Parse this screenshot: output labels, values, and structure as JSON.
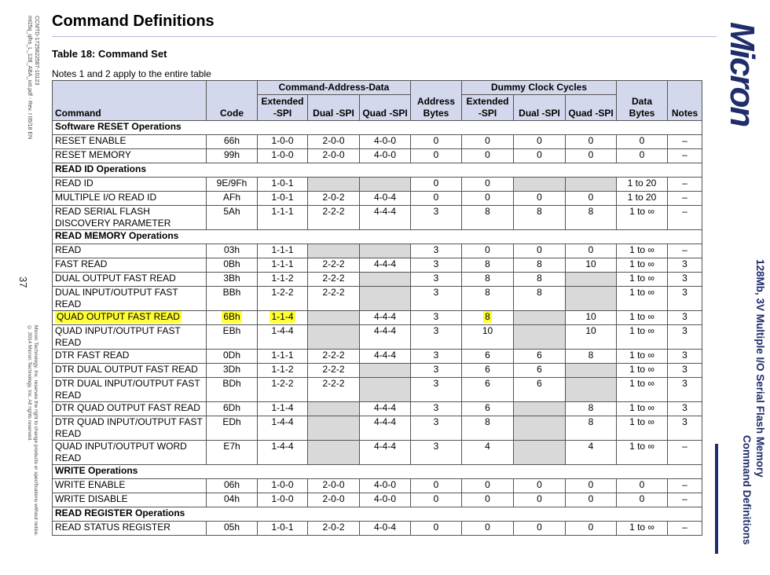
{
  "margin_left": {
    "doc_id": "CCMTD-1725822587-10123\nmt25q_qlhs_L_128_ABA_xxt.pdf - Rev. I 05/18 EN",
    "page_number": "37",
    "legal": "Micron Technology, Inc. reserves the right to change products or specifications without notice.\n© 2014 Micron Technology, Inc. All rights reserved."
  },
  "header": {
    "title": "Command Definitions",
    "logo_text": "Micron"
  },
  "side_title": {
    "line1": "128Mb, 3V Multiple I/O Serial Flash Memory",
    "line2": "Command Definitions"
  },
  "table": {
    "title": "Table 18: Command Set",
    "note": "Notes 1 and 2 apply to the entire table",
    "headers": {
      "command": "Command",
      "code": "Code",
      "cad_group": "Command-Address-Data",
      "cad_ext": "Extended -SPI",
      "cad_dual": "Dual -SPI",
      "cad_quad": "Quad -SPI",
      "address_bytes": "Address Bytes",
      "dummy_group": "Dummy Clock Cycles",
      "dummy_ext": "Extended -SPI",
      "dummy_dual": "Dual -SPI",
      "dummy_quad": "Quad -SPI",
      "data_bytes": "Data Bytes",
      "notes": "Notes"
    },
    "rows": [
      {
        "section": "Software RESET Operations"
      },
      {
        "cmd": "RESET ENABLE",
        "code": "66h",
        "ext": "1-0-0",
        "dual": "2-0-0",
        "quad": "4-0-0",
        "addr": "0",
        "dext": "0",
        "ddual": "0",
        "dquad": "0",
        "data": "0",
        "notes": "–"
      },
      {
        "cmd": "RESET MEMORY",
        "code": "99h",
        "ext": "1-0-0",
        "dual": "2-0-0",
        "quad": "4-0-0",
        "addr": "0",
        "dext": "0",
        "ddual": "0",
        "dquad": "0",
        "data": "0",
        "notes": "–"
      },
      {
        "section": "READ ID Operations"
      },
      {
        "cmd": "READ ID",
        "code": "9E/9Fh",
        "ext": "1-0-1",
        "dual": "",
        "quad": "",
        "addr": "0",
        "dext": "0",
        "ddual": "",
        "dquad": "",
        "data": "1 to 20",
        "notes": "–",
        "gray": [
          "dual",
          "quad",
          "ddual",
          "dquad"
        ]
      },
      {
        "cmd": "MULTIPLE I/O READ ID",
        "code": "AFh",
        "ext": "1-0-1",
        "dual": "2-0-2",
        "quad": "4-0-4",
        "addr": "0",
        "dext": "0",
        "ddual": "0",
        "dquad": "0",
        "data": "1 to 20",
        "notes": "–"
      },
      {
        "cmd": "READ SERIAL FLASH DISCOVERY PARAMETER",
        "code": "5Ah",
        "ext": "1-1-1",
        "dual": "2-2-2",
        "quad": "4-4-4",
        "addr": "3",
        "dext": "8",
        "ddual": "8",
        "dquad": "8",
        "data": "1 to ∞",
        "notes": "–",
        "tall": true
      },
      {
        "section": "READ MEMORY Operations"
      },
      {
        "cmd": "READ",
        "code": "03h",
        "ext": "1-1-1",
        "dual": "",
        "quad": "",
        "addr": "3",
        "dext": "0",
        "ddual": "0",
        "dquad": "0",
        "data": "1 to ∞",
        "notes": "–",
        "gray": [
          "dual",
          "quad"
        ]
      },
      {
        "cmd": "FAST READ",
        "code": "0Bh",
        "ext": "1-1-1",
        "dual": "2-2-2",
        "quad": "4-4-4",
        "addr": "3",
        "dext": "8",
        "ddual": "8",
        "dquad": "10",
        "data": "1 to ∞",
        "notes": "3"
      },
      {
        "cmd": "DUAL OUTPUT FAST READ",
        "code": "3Bh",
        "ext": "1-1-2",
        "dual": "2-2-2",
        "quad": "",
        "addr": "3",
        "dext": "8",
        "ddual": "8",
        "dquad": "",
        "data": "1 to ∞",
        "notes": "3",
        "gray": [
          "quad",
          "dquad"
        ]
      },
      {
        "cmd": "DUAL INPUT/OUTPUT FAST READ",
        "code": "BBh",
        "ext": "1-2-2",
        "dual": "2-2-2",
        "quad": "",
        "addr": "3",
        "dext": "8",
        "ddual": "8",
        "dquad": "",
        "data": "1 to ∞",
        "notes": "3",
        "gray": [
          "quad",
          "dquad"
        ]
      },
      {
        "cmd": "QUAD OUTPUT FAST READ",
        "code": "6Bh",
        "ext": "1-1-4",
        "dual": "",
        "quad": "4-4-4",
        "addr": "3",
        "dext": "8",
        "ddual": "",
        "dquad": "10",
        "data": "1 to ∞",
        "notes": "3",
        "gray": [
          "dual",
          "ddual"
        ],
        "highlight": [
          "cmd",
          "code",
          "ext",
          "dext"
        ]
      },
      {
        "cmd": "QUAD INPUT/OUTPUT FAST READ",
        "code": "EBh",
        "ext": "1-4-4",
        "dual": "",
        "quad": "4-4-4",
        "addr": "3",
        "dext": "10",
        "ddual": "",
        "dquad": "10",
        "data": "1 to ∞",
        "notes": "3",
        "gray": [
          "dual",
          "ddual"
        ]
      },
      {
        "cmd": "DTR FAST READ",
        "code": "0Dh",
        "ext": "1-1-1",
        "dual": "2-2-2",
        "quad": "4-4-4",
        "addr": "3",
        "dext": "6",
        "ddual": "6",
        "dquad": "8",
        "data": "1 to ∞",
        "notes": "3"
      },
      {
        "cmd": "DTR DUAL OUTPUT FAST READ",
        "code": "3Dh",
        "ext": "1-1-2",
        "dual": "2-2-2",
        "quad": "",
        "addr": "3",
        "dext": "6",
        "ddual": "6",
        "dquad": "",
        "data": "1 to ∞",
        "notes": "3",
        "gray": [
          "quad",
          "dquad"
        ]
      },
      {
        "cmd": "DTR DUAL INPUT/OUTPUT FAST READ",
        "code": "BDh",
        "ext": "1-2-2",
        "dual": "2-2-2",
        "quad": "",
        "addr": "3",
        "dext": "6",
        "ddual": "6",
        "dquad": "",
        "data": "1 to ∞",
        "notes": "3",
        "gray": [
          "quad",
          "dquad"
        ],
        "tall": true
      },
      {
        "cmd": "DTR QUAD OUTPUT FAST READ",
        "code": "6Dh",
        "ext": "1-1-4",
        "dual": "",
        "quad": "4-4-4",
        "addr": "3",
        "dext": "6",
        "ddual": "",
        "dquad": "8",
        "data": "1 to ∞",
        "notes": "3",
        "gray": [
          "dual",
          "ddual"
        ]
      },
      {
        "cmd": "DTR QUAD INPUT/OUTPUT FAST READ",
        "code": "EDh",
        "ext": "1-4-4",
        "dual": "",
        "quad": "4-4-4",
        "addr": "3",
        "dext": "8",
        "ddual": "",
        "dquad": "8",
        "data": "1 to ∞",
        "notes": "3",
        "gray": [
          "dual",
          "ddual"
        ],
        "tall": true
      },
      {
        "cmd": "QUAD INPUT/OUTPUT WORD READ",
        "code": "E7h",
        "ext": "1-4-4",
        "dual": "",
        "quad": "4-4-4",
        "addr": "3",
        "dext": "4",
        "ddual": "",
        "dquad": "4",
        "data": "1 to ∞",
        "notes": "–",
        "gray": [
          "dual",
          "ddual"
        ],
        "tall": true
      },
      {
        "section": "WRITE Operations"
      },
      {
        "cmd": "WRITE ENABLE",
        "code": "06h",
        "ext": "1-0-0",
        "dual": "2-0-0",
        "quad": "4-0-0",
        "addr": "0",
        "dext": "0",
        "ddual": "0",
        "dquad": "0",
        "data": "0",
        "notes": "–"
      },
      {
        "cmd": "WRITE DISABLE",
        "code": "04h",
        "ext": "1-0-0",
        "dual": "2-0-0",
        "quad": "4-0-0",
        "addr": "0",
        "dext": "0",
        "ddual": "0",
        "dquad": "0",
        "data": "0",
        "notes": "–"
      },
      {
        "section": "READ REGISTER Operations"
      },
      {
        "cmd": "READ STATUS REGISTER",
        "code": "05h",
        "ext": "1-0-1",
        "dual": "2-0-2",
        "quad": "4-0-4",
        "addr": "0",
        "dext": "0",
        "ddual": "0",
        "dquad": "0",
        "data": "1 to ∞",
        "notes": "–"
      }
    ]
  },
  "colors": {
    "header_fill": "#d4d8ec",
    "gray_cell": "#d9d9d9",
    "highlight": "#ffff33",
    "brand": "#1f2d6b"
  }
}
